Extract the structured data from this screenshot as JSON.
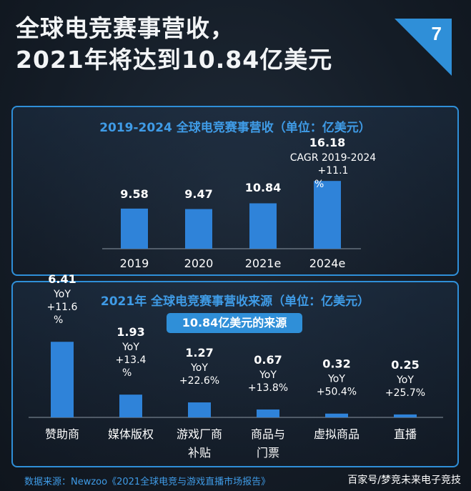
{
  "headline": {
    "line1": "全球电竞赛事营收，",
    "line2": "2021年将达到10.84亿美元"
  },
  "page_number": "7",
  "colors": {
    "bar": "#2f83d9",
    "accent": "#3f9be6",
    "background": "#141c26"
  },
  "source_note": "数据来源：Newzoo《2021全球电竞与游戏直播市场报告》",
  "watermark": "百家号/梦竞未来电子竞技",
  "chart_data": [
    {
      "type": "bar",
      "title": "2019-2024 全球电竞赛事营收（单位：亿美元）",
      "categories": [
        "2019",
        "2020",
        "2021e",
        "2024e"
      ],
      "values": [
        9.58,
        9.47,
        10.84,
        16.18
      ],
      "value_labels": [
        "9.58",
        "9.47",
        "10.84",
        "16.18"
      ],
      "annotations": [
        {
          "category": "2024e",
          "lines": [
            "CAGR 2019-2024",
            "+11.1",
            "%"
          ]
        }
      ]
    },
    {
      "type": "bar",
      "title": "2021年 全球电竞赛事营收来源（单位：亿美元）",
      "subtitle": "10.84亿美元的来源",
      "categories": [
        [
          "赞助商"
        ],
        [
          "媒体版权"
        ],
        [
          "游戏厂商",
          "补贴"
        ],
        [
          "商品与",
          "门票"
        ],
        [
          "虚拟商品"
        ],
        [
          "直播"
        ]
      ],
      "values": [
        6.41,
        1.93,
        1.27,
        0.67,
        0.32,
        0.25
      ],
      "value_labels": [
        "6.41",
        "1.93",
        "1.27",
        "0.67",
        "0.32",
        "0.25"
      ],
      "yoy_labels": [
        [
          "YoY",
          "+11.6",
          "%"
        ],
        [
          "YoY",
          "+13.4",
          "%"
        ],
        [
          "YoY",
          "+22.6%"
        ],
        [
          "YoY",
          "+13.8%"
        ],
        [
          "YoY",
          "+50.4%"
        ],
        [
          "YoY",
          "+25.7%"
        ]
      ]
    }
  ]
}
